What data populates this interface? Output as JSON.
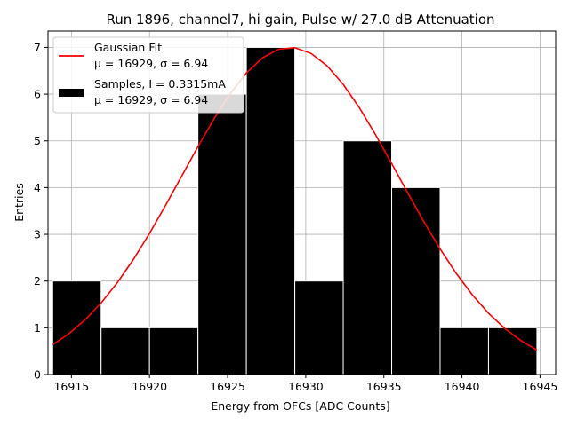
{
  "chart_data": {
    "type": "bar",
    "title": "Run 1896, channel7, hi gain, Pulse w/ 27.0 dB Attenuation",
    "xlabel": "Energy from OFCs [ADC Counts]",
    "ylabel": "Entries",
    "xlim": [
      16913.5,
      16946.0
    ],
    "ylim": [
      0,
      7.35
    ],
    "grid": true,
    "legend_position": "top-left",
    "xticks": [
      16915,
      16920,
      16925,
      16930,
      16935,
      16940,
      16945
    ],
    "yticks": [
      0,
      1,
      2,
      3,
      4,
      5,
      6,
      7
    ],
    "histogram": {
      "name": "Samples, I = 0.3315mA",
      "stat_label": "μ = 16929, σ = 6.94",
      "color": "#000000",
      "edge_color": "#ffffff",
      "bin_edges": [
        16913.8,
        16916.9,
        16920.0,
        16923.1,
        16926.2,
        16929.3,
        16932.4,
        16935.5,
        16938.6,
        16941.7,
        16944.8
      ],
      "counts": [
        2,
        1,
        1,
        6,
        7,
        2,
        5,
        4,
        1,
        1
      ]
    },
    "fit": {
      "name": "Gaussian Fit",
      "stat_label": "μ = 16929, σ = 6.94",
      "color": "#ff0000",
      "mu": 16929,
      "sigma": 6.94,
      "amplitude": 7.0,
      "x_range": [
        16913.8,
        16944.8
      ]
    }
  }
}
